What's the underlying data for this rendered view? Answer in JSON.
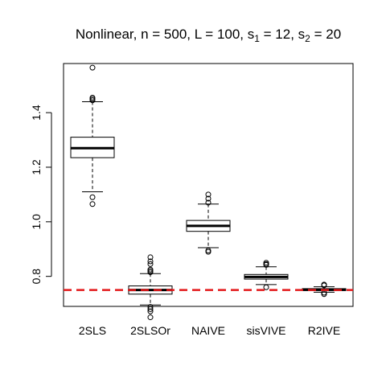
{
  "chart_data": {
    "type": "boxplot",
    "title_parts": [
      {
        "text": "Nonlinear, n = 500, L = 100, s",
        "sub": false
      },
      {
        "text": "1",
        "sub": true
      },
      {
        "text": " = 12, s",
        "sub": false
      },
      {
        "text": "2",
        "sub": true
      },
      {
        "text": " = 20",
        "sub": false
      }
    ],
    "categories": [
      "2SLS",
      "2SLSOr",
      "NAIVE",
      "sisVIVE",
      "R2IVE"
    ],
    "ylim": [
      0.69,
      1.58
    ],
    "yticks": [
      0.8,
      1.0,
      1.2,
      1.4
    ],
    "ytick_labels": [
      "0.8",
      "1.0",
      "1.2",
      "1.4"
    ],
    "boxes": [
      {
        "name": "2SLS",
        "whisker_low": 1.11,
        "q1": 1.235,
        "median": 1.27,
        "q3": 1.31,
        "whisker_high": 1.44,
        "outliers": [
          1.565,
          1.455,
          1.45,
          1.445,
          1.09,
          1.065
        ]
      },
      {
        "name": "2SLSOr",
        "whisker_low": 0.695,
        "q1": 0.735,
        "median": 0.75,
        "q3": 0.765,
        "whisker_high": 0.81,
        "outliers": [
          0.87,
          0.855,
          0.845,
          0.825,
          0.82,
          0.815,
          0.688,
          0.68,
          0.672,
          0.65
        ]
      },
      {
        "name": "NAIVE",
        "whisker_low": 0.905,
        "q1": 0.965,
        "median": 0.985,
        "q3": 1.005,
        "whisker_high": 1.065,
        "outliers": [
          1.1,
          1.085,
          1.07,
          0.895,
          0.89
        ]
      },
      {
        "name": "sisVIVE",
        "whisker_low": 0.77,
        "q1": 0.79,
        "median": 0.798,
        "q3": 0.807,
        "whisker_high": 0.835,
        "outliers": [
          0.85,
          0.845,
          0.842,
          0.76
        ]
      },
      {
        "name": "R2IVE",
        "whisker_low": 0.742,
        "q1": 0.748,
        "median": 0.751,
        "q3": 0.755,
        "whisker_high": 0.762,
        "outliers": [
          0.77,
          0.767,
          0.74,
          0.735
        ]
      }
    ],
    "reference_line": {
      "y": 0.75,
      "color": "#e31a1c",
      "style": "dashed"
    },
    "grid": false,
    "legend": "none"
  }
}
